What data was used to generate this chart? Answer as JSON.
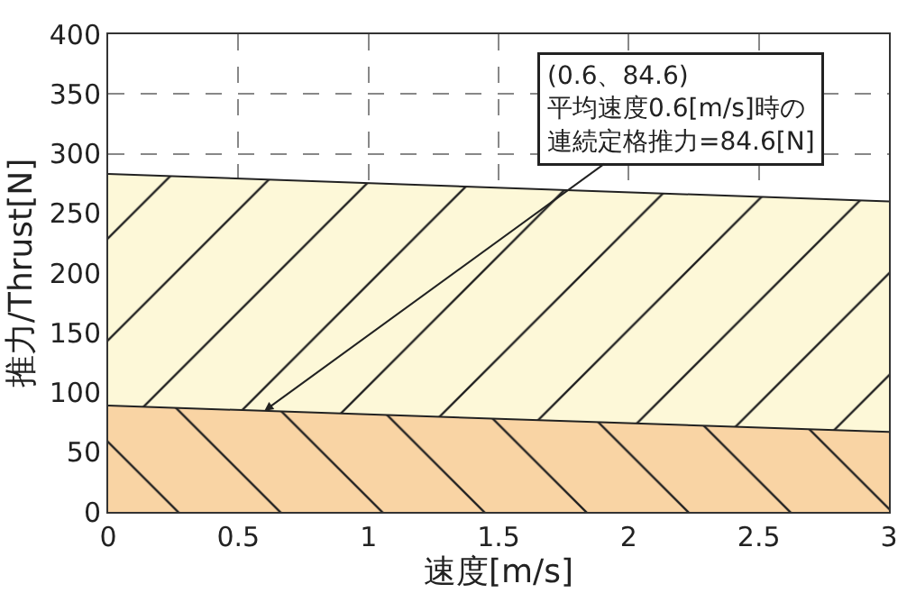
{
  "chart_data": {
    "type": "area",
    "xlabel": "速度[m/s]",
    "ylabel": "推力/Thrust[N]",
    "x": [
      0,
      3
    ],
    "series": [
      {
        "color": "#f9d4a4",
        "values": [
          89,
          67
        ]
      },
      {
        "color": "#fdf8d8",
        "values": [
          283,
          260
        ]
      }
    ],
    "xlim": [
      0,
      3
    ],
    "xticks": [
      0,
      0.5,
      1,
      1.5,
      2,
      2.5,
      3
    ],
    "ylim": [
      0,
      400
    ],
    "yticks": [
      0,
      50,
      100,
      150,
      200,
      250,
      300,
      350,
      400
    ],
    "grid": true,
    "line_style": "dashed",
    "annotations": [
      {
        "text": "(0.6、84.6)\n平均速度0.6[m/s]時の連続定格推力=84.6[N]",
        "x": 0.6,
        "y": 84.6
      }
    ]
  }
}
